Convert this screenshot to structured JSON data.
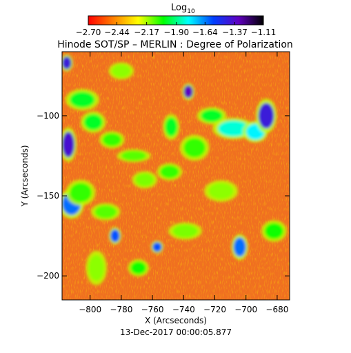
{
  "chart_data": {
    "type": "heatmap",
    "title": "Hinode SOT/SP – MERLIN : Degree of Polarization",
    "xlabel": "X (Arcseconds)",
    "ylabel": "Y (Arcseconds)",
    "date_label": "13-Dec-2017 00:00:05.877",
    "xlim": [
      -818,
      -672
    ],
    "ylim": [
      -215,
      -60
    ],
    "x_ticks": [
      -800,
      -780,
      -760,
      -740,
      -720,
      -700,
      -680
    ],
    "x_tick_labels": [
      "−800",
      "−780",
      "−760",
      "−740",
      "−720",
      "−700",
      "−680"
    ],
    "y_ticks": [
      -100,
      -150,
      -200
    ],
    "y_tick_labels": [
      "−100",
      "−150",
      "−200"
    ],
    "colorbar": {
      "label": "Log",
      "label_sub": "10",
      "range": [
        -2.7,
        -1.11
      ],
      "tick_values": [
        -2.7,
        -2.44,
        -2.17,
        -1.9,
        -1.64,
        -1.37,
        -1.11
      ],
      "tick_labels": [
        "−2.70",
        "−2.44",
        "−2.17",
        "−1.90",
        "−1.64",
        "−1.37",
        "−1.11"
      ],
      "stops": [
        "#ff0000",
        "#ff8000",
        "#ffff00",
        "#00ff00",
        "#00ffff",
        "#0040ff",
        "#6000c0",
        "#000000"
      ]
    },
    "background_color": "#f07020",
    "patches": [
      {
        "x": -815,
        "y": -67,
        "w": 3,
        "h": 4,
        "level": 0.8
      },
      {
        "x": -814,
        "y": -118,
        "w": 4,
        "h": 8,
        "level": 0.82
      },
      {
        "x": -812,
        "y": -155,
        "w": 6,
        "h": 7,
        "level": 0.68
      },
      {
        "x": -805,
        "y": -90,
        "w": 8,
        "h": 5,
        "level": 0.45
      },
      {
        "x": -806,
        "y": -148,
        "w": 7,
        "h": 6,
        "level": 0.4
      },
      {
        "x": -798,
        "y": -104,
        "w": 6,
        "h": 5,
        "level": 0.45
      },
      {
        "x": -796,
        "y": -195,
        "w": 5,
        "h": 8,
        "level": 0.35
      },
      {
        "x": -790,
        "y": -160,
        "w": 7,
        "h": 4,
        "level": 0.38
      },
      {
        "x": -786,
        "y": -115,
        "w": 6,
        "h": 4,
        "level": 0.4
      },
      {
        "x": -784,
        "y": -175,
        "w": 3,
        "h": 4,
        "level": 0.7
      },
      {
        "x": -780,
        "y": -72,
        "w": 6,
        "h": 4,
        "level": 0.35
      },
      {
        "x": -772,
        "y": -125,
        "w": 8,
        "h": 3,
        "level": 0.38
      },
      {
        "x": -769,
        "y": -195,
        "w": 5,
        "h": 4,
        "level": 0.42
      },
      {
        "x": -765,
        "y": -140,
        "w": 6,
        "h": 4,
        "level": 0.36
      },
      {
        "x": -757,
        "y": -182,
        "w": 3,
        "h": 3,
        "level": 0.7
      },
      {
        "x": -748,
        "y": -107,
        "w": 4,
        "h": 6,
        "level": 0.45
      },
      {
        "x": -749,
        "y": -135,
        "w": 6,
        "h": 4,
        "level": 0.4
      },
      {
        "x": -739,
        "y": -172,
        "w": 8,
        "h": 4,
        "level": 0.36
      },
      {
        "x": -737,
        "y": -85,
        "w": 3,
        "h": 4,
        "level": 0.85
      },
      {
        "x": -733,
        "y": -120,
        "w": 7,
        "h": 6,
        "level": 0.4
      },
      {
        "x": -722,
        "y": -100,
        "w": 7,
        "h": 4,
        "level": 0.45
      },
      {
        "x": -716,
        "y": -147,
        "w": 8,
        "h": 5,
        "level": 0.35
      },
      {
        "x": -708,
        "y": -108,
        "w": 10,
        "h": 5,
        "level": 0.55
      },
      {
        "x": -704,
        "y": -182,
        "w": 4,
        "h": 6,
        "level": 0.68
      },
      {
        "x": -694,
        "y": -110,
        "w": 6,
        "h": 5,
        "level": 0.58
      },
      {
        "x": -687,
        "y": -100,
        "w": 5,
        "h": 8,
        "level": 0.8
      },
      {
        "x": -682,
        "y": -172,
        "w": 6,
        "h": 5,
        "level": 0.42
      }
    ]
  }
}
